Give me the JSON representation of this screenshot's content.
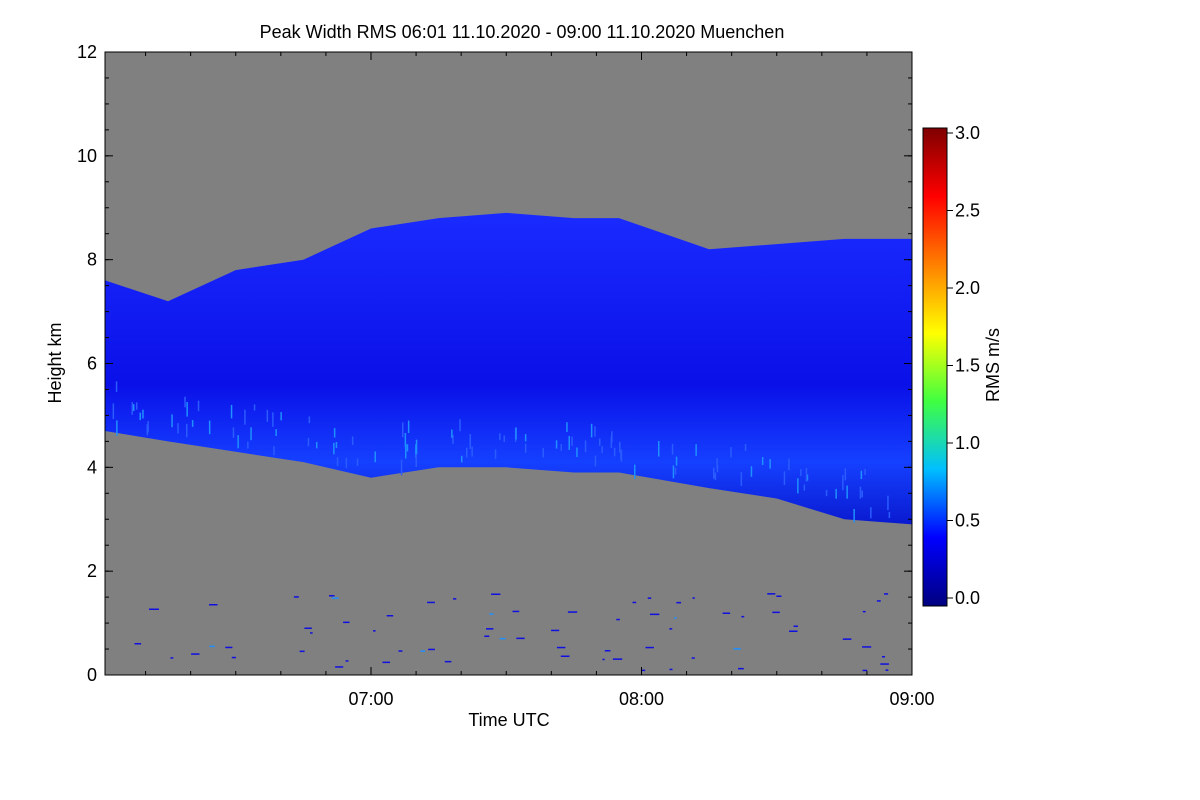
{
  "chart_data": {
    "type": "heatmap",
    "title": "Peak Width RMS   06:01 11.10.2020 - 09:00 11.10.2020 Muenchen",
    "xlabel": "Time UTC",
    "ylabel": "Height km",
    "x_range": [
      "06:01",
      "09:00"
    ],
    "x_ticks": [
      "07:00",
      "08:00",
      "09:00"
    ],
    "y_range": [
      0,
      12
    ],
    "y_ticks": [
      "0",
      "2",
      "4",
      "6",
      "8",
      "10",
      "12"
    ],
    "background_color": "#808080",
    "colorbar": {
      "label": "RMS m/s",
      "range": [
        0.0,
        3.0
      ],
      "ticks": [
        "0.0",
        "0.5",
        "1.0",
        "1.5",
        "2.0",
        "2.5",
        "3.0"
      ],
      "colors": [
        "#00007f",
        "#0000ff",
        "#00bfff",
        "#40ff40",
        "#ffff00",
        "#ff8000",
        "#ff0000",
        "#7f0000"
      ]
    },
    "cloud_layer": {
      "description_values": "typical RMS about 0.2–0.5 m/s, max about 1.2 m/s near the cloud base",
      "time": [
        "06:01",
        "06:15",
        "06:30",
        "06:45",
        "07:00",
        "07:15",
        "07:30",
        "07:45",
        "07:55",
        "08:15",
        "08:30",
        "08:45",
        "09:00"
      ],
      "top_km": [
        7.6,
        7.2,
        7.8,
        8.0,
        8.6,
        8.8,
        8.9,
        8.8,
        8.8,
        8.2,
        8.3,
        8.4,
        8.4
      ],
      "base_km": [
        4.7,
        4.5,
        4.3,
        4.1,
        3.8,
        4.0,
        4.0,
        3.9,
        3.9,
        3.6,
        3.4,
        3.0,
        2.9
      ]
    }
  }
}
